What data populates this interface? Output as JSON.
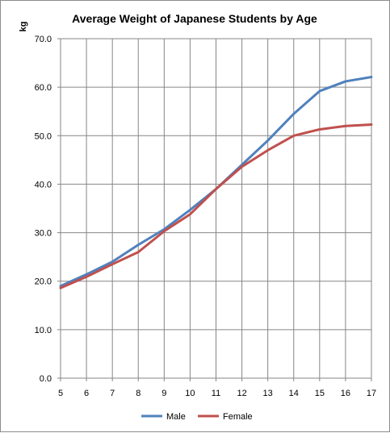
{
  "chart_data": {
    "type": "line",
    "title": "Average Weight of Japanese Students by Age",
    "ylabel": "kg",
    "xlabel": "",
    "x": [
      5,
      6,
      7,
      8,
      9,
      10,
      11,
      12,
      13,
      14,
      15,
      16,
      17
    ],
    "xlim": [
      5,
      17
    ],
    "ylim": [
      0,
      70
    ],
    "ytick_step": 10,
    "ytick_labels": [
      "0.0",
      "10.0",
      "20.0",
      "30.0",
      "40.0",
      "50.0",
      "60.0",
      "70.0"
    ],
    "xtick_labels": [
      "5",
      "6",
      "7",
      "8",
      "9",
      "10",
      "11",
      "12",
      "13",
      "14",
      "15",
      "16",
      "17"
    ],
    "grid": true,
    "legend_position": "bottom",
    "series": [
      {
        "name": "Male",
        "color": "#4F81BD",
        "values": [
          19.0,
          21.4,
          24.0,
          27.5,
          30.7,
          34.7,
          39.0,
          44.0,
          49.0,
          54.5,
          59.2,
          61.2,
          62.1
        ]
      },
      {
        "name": "Female",
        "color": "#C0504D",
        "values": [
          18.6,
          20.9,
          23.5,
          26.0,
          30.3,
          33.8,
          39.0,
          43.6,
          47.0,
          50.0,
          51.3,
          52.0,
          52.3
        ]
      }
    ]
  }
}
